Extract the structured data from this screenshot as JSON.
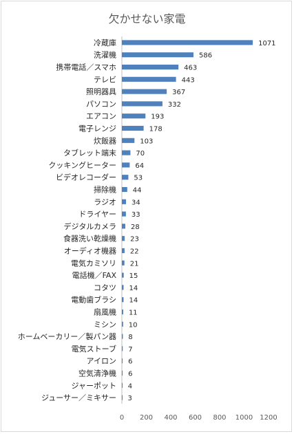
{
  "chart_data": {
    "type": "bar",
    "orientation": "horizontal",
    "title": "欠かせない家電",
    "categories": [
      "冷蔵庫",
      "洗濯機",
      "携帯電話／スマホ",
      "テレビ",
      "照明器具",
      "パソコン",
      "エアコン",
      "電子レンジ",
      "炊飯器",
      "タブレット端末",
      "クッキングヒーター",
      "ビデオレコーダー",
      "掃除機",
      "ラジオ",
      "ドライヤー",
      "デジタルカメラ",
      "食器洗い乾燥機",
      "オーディオ機器",
      "電気カミソリ",
      "電話機／FAX",
      "コタツ",
      "電動歯ブラシ",
      "扇風機",
      "ミシン",
      "ホームベーカリー／製パン器",
      "電気ストーブ",
      "アイロン",
      "空気清浄機",
      "ジャーポット",
      "ジューサー／ミキサー"
    ],
    "values": [
      1071,
      586,
      463,
      443,
      367,
      332,
      193,
      178,
      103,
      70,
      64,
      53,
      44,
      34,
      33,
      28,
      23,
      22,
      21,
      15,
      14,
      14,
      11,
      10,
      8,
      7,
      6,
      6,
      4,
      3
    ],
    "xlim": [
      0,
      1200
    ],
    "xticks": [
      "0",
      "200",
      "400",
      "600",
      "800",
      "1000",
      "1200"
    ],
    "bar_color": "#4f81bd",
    "data_labels": true,
    "grid": false
  }
}
